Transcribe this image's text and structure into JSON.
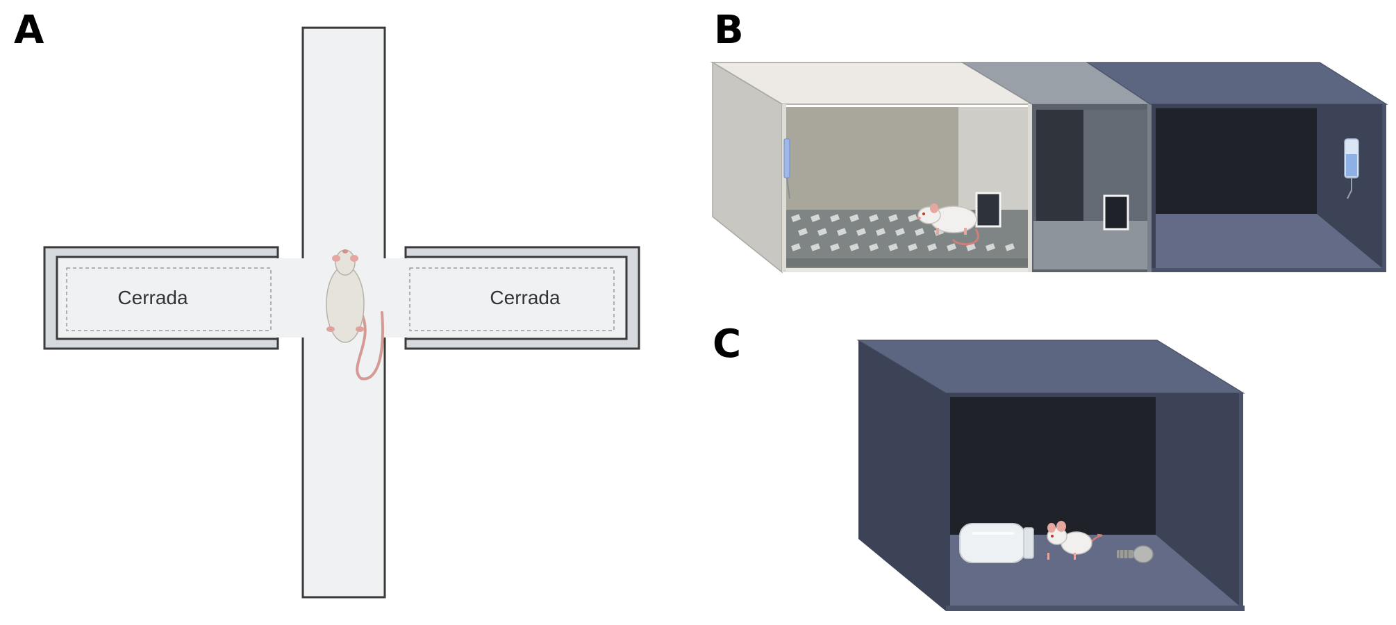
{
  "panels": [
    {
      "letter": "A"
    },
    {
      "letter": "B"
    },
    {
      "letter": "C"
    }
  ],
  "maze": {
    "left_arm_label": "Cerrada",
    "right_arm_label": "Cerrada"
  },
  "colors": {
    "maze_floor": "#f0f1f3",
    "maze_wall": "#3a3a3a",
    "maze_border": "#d6d9de",
    "light_box_top": "#edeae5",
    "light_box_side": "#c8c7c2",
    "light_box_back": "#a9a79b",
    "dark_box": "#5d6680",
    "dark_box_side": "#3c4357",
    "dark_box_back": "#1f2229",
    "dark_box_floor": "#646b87",
    "gate_gray": "#9aa0a8"
  }
}
